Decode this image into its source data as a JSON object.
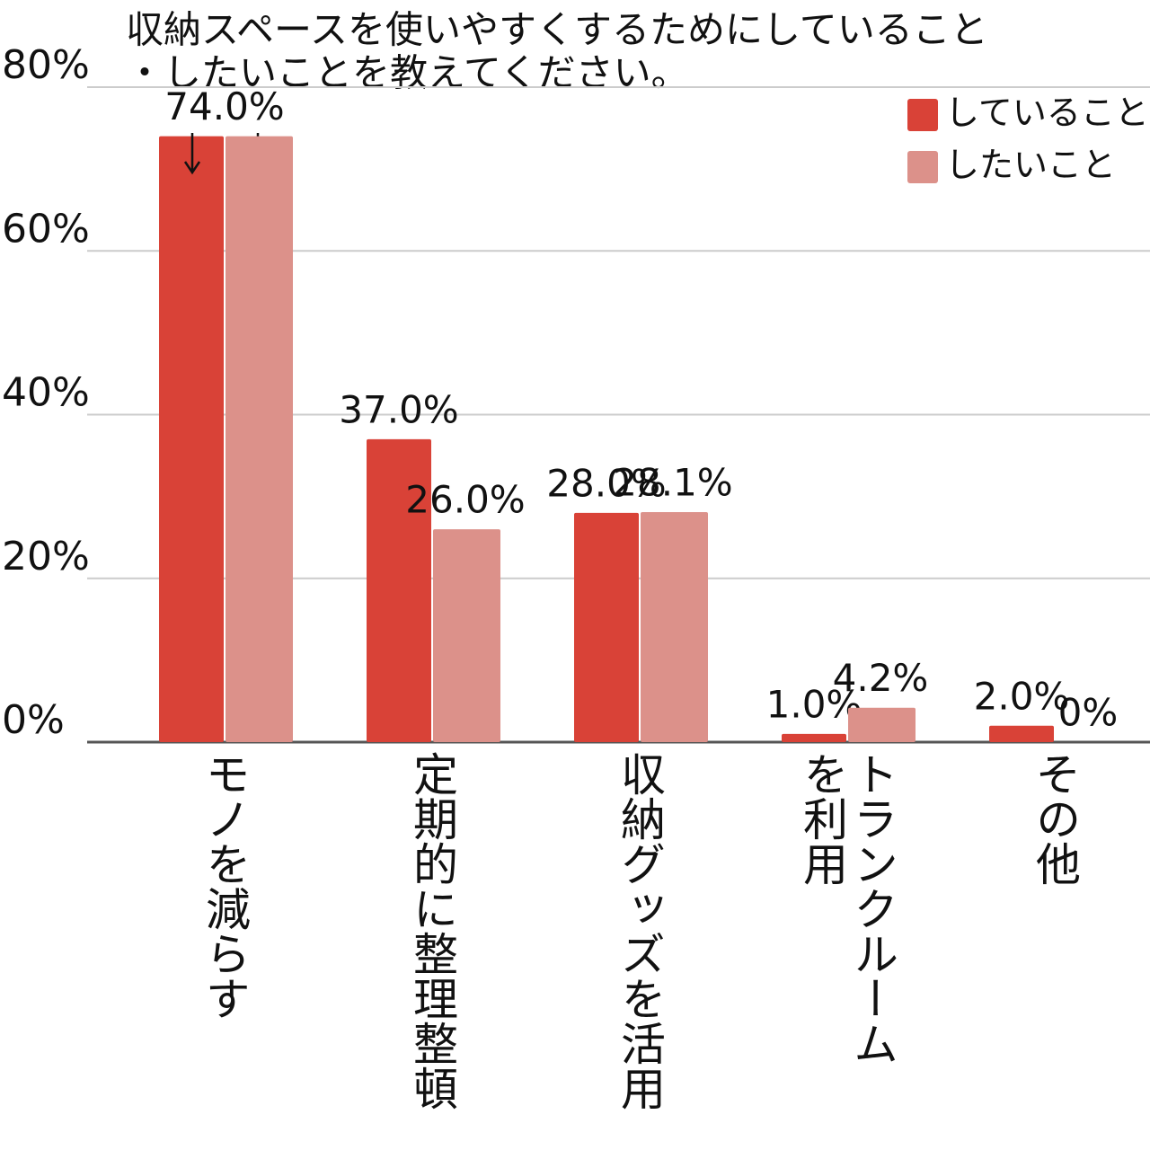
{
  "chart_data": {
    "type": "bar",
    "title": [
      "収納スペースを使いやすくするためにしていること",
      "・したいことを教えてください。"
    ],
    "categories": [
      "モノを減らす",
      "定期的に整理整頓",
      "収納グッズを活用",
      "トランクルームを利用",
      "その他"
    ],
    "series": [
      {
        "name": "していること",
        "color": "#d94237",
        "values": [
          74,
          37,
          28,
          1,
          2
        ],
        "value_labels": [
          "74.0%",
          "37.0%",
          "28.0%",
          "1.0%",
          "2.0%"
        ]
      },
      {
        "name": "したいこと",
        "color": "#dc918a",
        "values": [
          74,
          26,
          28.1,
          4.2,
          0
        ],
        "value_labels": [
          null,
          "26.0%",
          "28.1%",
          "4.2%",
          "0%"
        ]
      }
    ],
    "ylim": [
      0,
      80
    ],
    "yticks": [
      {
        "value": 0,
        "label": "0%"
      },
      {
        "value": 20,
        "label": "20%"
      },
      {
        "value": 40,
        "label": "40%"
      },
      {
        "value": 60,
        "label": "60%"
      },
      {
        "value": 80,
        "label": "80%"
      }
    ],
    "grid": true,
    "legend": "top-right"
  }
}
